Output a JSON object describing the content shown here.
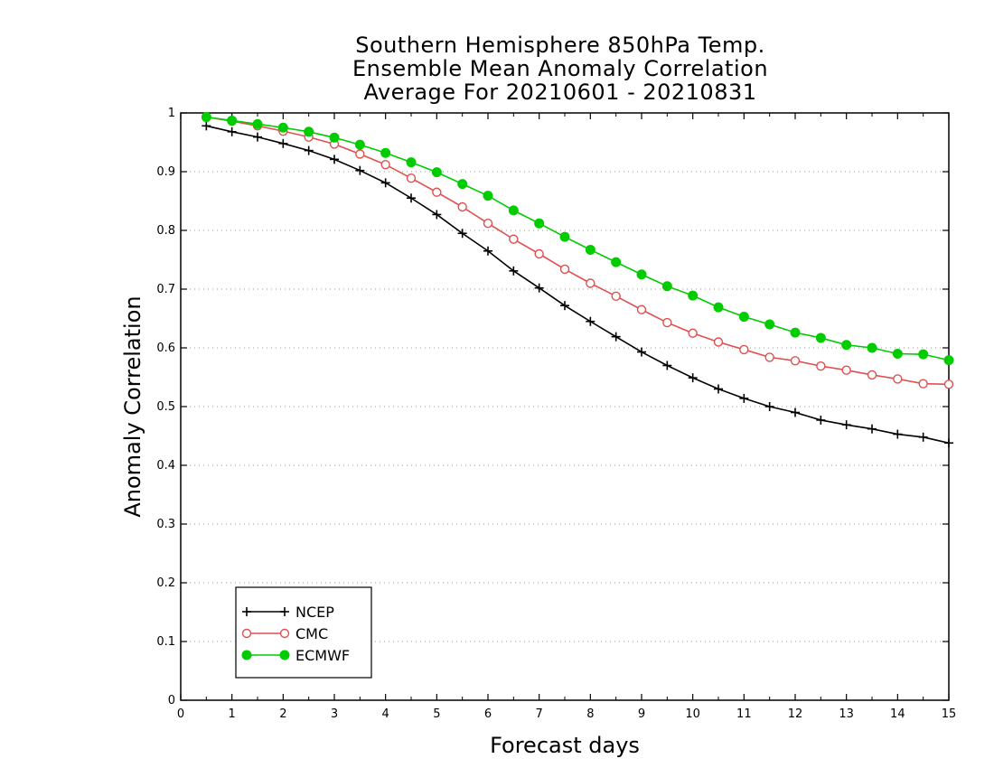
{
  "chart_data": {
    "type": "line",
    "title_lines": [
      "Southern Hemisphere 850hPa Temp.",
      "Ensemble Mean Anomaly Correlation",
      "Average For 20210601 - 20210831"
    ],
    "xlabel": "Forecast days",
    "ylabel": "Anomaly Correlation",
    "xlim": [
      0,
      15
    ],
    "ylim": [
      0,
      1
    ],
    "xticks": [
      "0",
      "1",
      "2",
      "3",
      "4",
      "5",
      "6",
      "7",
      "8",
      "9",
      "10",
      "11",
      "12",
      "13",
      "14",
      "15"
    ],
    "yticks": [
      "0",
      "0.1",
      "0.2",
      "0.3",
      "0.4",
      "0.5",
      "0.6",
      "0.7",
      "0.8",
      "0.9",
      "1"
    ],
    "grid": "horizontal-dotted",
    "legend_position": "bottom-left",
    "x": [
      0.5,
      1,
      1.5,
      2,
      2.5,
      3,
      3.5,
      4,
      4.5,
      5,
      5.5,
      6,
      6.5,
      7,
      7.5,
      8,
      8.5,
      9,
      9.5,
      10,
      10.5,
      11,
      11.5,
      12,
      12.5,
      13,
      13.5,
      14,
      14.5,
      15
    ],
    "series": [
      {
        "name": "NCEP",
        "color": "#000000",
        "marker": "plus",
        "values": [
          0.978,
          0.968,
          0.959,
          0.948,
          0.936,
          0.921,
          0.902,
          0.881,
          0.855,
          0.827,
          0.795,
          0.765,
          0.731,
          0.702,
          0.672,
          0.645,
          0.619,
          0.593,
          0.57,
          0.549,
          0.53,
          0.514,
          0.5,
          0.49,
          0.477,
          0.469,
          0.462,
          0.453,
          0.448,
          0.438
        ]
      },
      {
        "name": "CMC",
        "color": "#e05050",
        "marker": "open-circle",
        "values": [
          0.993,
          0.986,
          0.978,
          0.969,
          0.959,
          0.947,
          0.93,
          0.912,
          0.889,
          0.865,
          0.84,
          0.812,
          0.785,
          0.76,
          0.734,
          0.71,
          0.688,
          0.665,
          0.643,
          0.625,
          0.61,
          0.597,
          0.584,
          0.578,
          0.569,
          0.562,
          0.554,
          0.547,
          0.539,
          0.538
        ]
      },
      {
        "name": "ECMWF",
        "color": "#00cc00",
        "marker": "filled-circle",
        "values": [
          0.993,
          0.987,
          0.981,
          0.975,
          0.968,
          0.958,
          0.946,
          0.932,
          0.916,
          0.899,
          0.879,
          0.859,
          0.834,
          0.812,
          0.789,
          0.767,
          0.746,
          0.725,
          0.705,
          0.689,
          0.669,
          0.653,
          0.64,
          0.626,
          0.617,
          0.605,
          0.6,
          0.59,
          0.589,
          0.579
        ]
      }
    ]
  }
}
